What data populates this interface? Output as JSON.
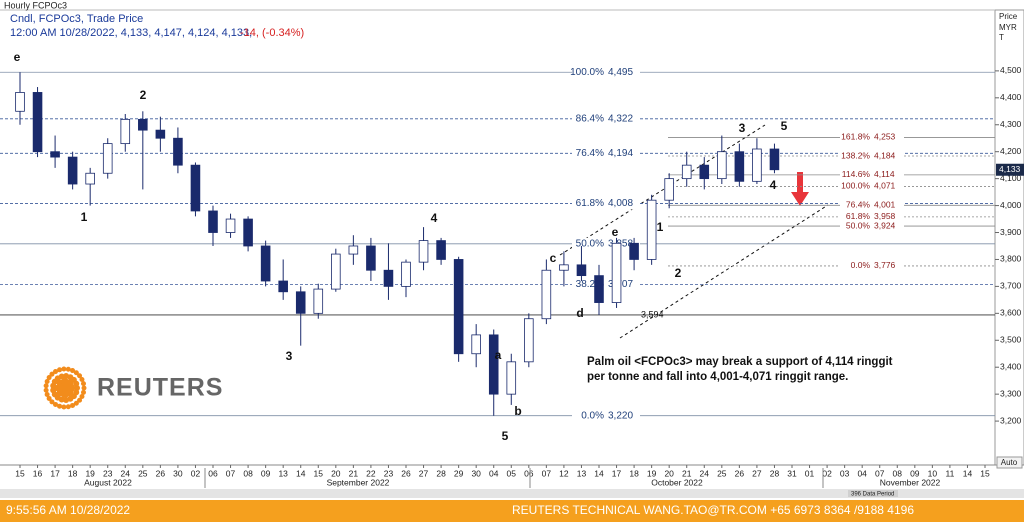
{
  "chart_data": {
    "type": "candlestick",
    "title": "Hourly FCPOc3",
    "subtitle": "Cndl, FCPOc3, Trade Price",
    "quote": "12:00 AM 10/28/2022, 4,133, 4,147, 4,124, 4,133,",
    "change": "-14, (-0.34%)",
    "axis_title": [
      "Price",
      "MYR",
      "T"
    ],
    "categories": [
      "15",
      "16",
      "17",
      "18",
      "19",
      "23",
      "24",
      "25",
      "26",
      "30",
      "02",
      "06",
      "07",
      "08",
      "09",
      "13",
      "14",
      "15",
      "20",
      "21",
      "22",
      "23",
      "26",
      "27",
      "28",
      "29",
      "30",
      "04",
      "05",
      "06",
      "07",
      "12",
      "13",
      "14",
      "17",
      "18",
      "19",
      "20",
      "21",
      "24",
      "25",
      "26",
      "27",
      "28",
      "31",
      "01",
      "02",
      "03",
      "04",
      "07",
      "08",
      "09",
      "10",
      "11",
      "14",
      "15"
    ],
    "months": [
      "August 2022",
      "September 2022",
      "October 2022",
      "November 2022"
    ],
    "open": [
      4350,
      4420,
      4200,
      4180,
      4080,
      4120,
      4230,
      4320,
      4280,
      4250,
      4150,
      3980,
      3900,
      3950,
      3850,
      3720,
      3680,
      3600,
      3690,
      3820,
      3850,
      3760,
      3700,
      3790,
      3870,
      3800,
      3450,
      3520,
      3300,
      3420,
      3580,
      3760,
      3780,
      3740,
      3640,
      3860,
      3800,
      4020,
      4100,
      4150,
      4100,
      4200,
      4090,
      4210,
      null,
      null,
      null,
      null,
      null,
      null,
      null,
      null,
      null,
      null,
      null,
      null
    ],
    "high": [
      4495,
      4440,
      4260,
      4200,
      4140,
      4250,
      4340,
      4350,
      4330,
      4290,
      4160,
      4000,
      3970,
      3960,
      3870,
      3800,
      3700,
      3710,
      3840,
      3890,
      3880,
      3860,
      3800,
      3920,
      3880,
      3810,
      3560,
      3540,
      3450,
      3600,
      3800,
      3830,
      3850,
      3780,
      3880,
      3880,
      4040,
      4120,
      4200,
      4180,
      4260,
      4230,
      4250,
      4230,
      null,
      null,
      null,
      null,
      null,
      null,
      null,
      null,
      null,
      null,
      null,
      null
    ],
    "low": [
      4300,
      4180,
      4140,
      4060,
      4000,
      4100,
      4200,
      4060,
      4200,
      4120,
      3960,
      3850,
      3880,
      3830,
      3700,
      3650,
      3480,
      3580,
      3680,
      3780,
      3720,
      3650,
      3660,
      3760,
      3780,
      3420,
      3400,
      3220,
      3260,
      3400,
      3560,
      3700,
      3720,
      3594,
      3620,
      3760,
      3780,
      3990,
      4070,
      4060,
      4080,
      4070,
      4080,
      4120,
      null,
      null,
      null,
      null,
      null,
      null,
      null,
      null,
      null,
      null,
      null,
      null
    ],
    "close": [
      4420,
      4200,
      4180,
      4080,
      4120,
      4230,
      4320,
      4280,
      4250,
      4150,
      3980,
      3900,
      3950,
      3850,
      3720,
      3680,
      3600,
      3690,
      3820,
      3850,
      3760,
      3700,
      3790,
      3870,
      3800,
      3450,
      3520,
      3300,
      3420,
      3580,
      3760,
      3780,
      3740,
      3640,
      3860,
      3800,
      4020,
      4100,
      4150,
      4100,
      4200,
      4090,
      4210,
      4133,
      null,
      null,
      null,
      null,
      null,
      null,
      null,
      null,
      null,
      null,
      null,
      null
    ],
    "ylim": [
      3037,
      4726
    ],
    "yticks": [
      {
        "value": 3200,
        "label": "3,200"
      },
      {
        "value": 3300,
        "label": "3,300"
      },
      {
        "value": 3400,
        "label": "3,400"
      },
      {
        "value": 3500,
        "label": "3,500"
      },
      {
        "value": 3600,
        "label": "3,600"
      },
      {
        "value": 3700,
        "label": "3,700"
      },
      {
        "value": 3800,
        "label": "3,800"
      },
      {
        "value": 3900,
        "label": "3,900"
      },
      {
        "value": 4000,
        "label": "4,000"
      },
      {
        "value": 4100,
        "label": "4,100"
      },
      {
        "value": 4200,
        "label": "4,200"
      },
      {
        "value": 4300,
        "label": "4,300"
      },
      {
        "value": 4400,
        "label": "4,400"
      },
      {
        "value": 4500,
        "label": "4,500"
      }
    ],
    "last": {
      "value": 4133,
      "label": "4,133"
    },
    "fib_left": [
      {
        "pct": "100.0%",
        "value": 4495,
        "label": "4,495"
      },
      {
        "pct": "86.4%",
        "value": 4322,
        "label": "4,322"
      },
      {
        "pct": "76.4%",
        "value": 4194,
        "label": "4,194"
      },
      {
        "pct": "61.8%",
        "value": 4008,
        "label": "4,008"
      },
      {
        "pct": "50.0%",
        "value": 3858,
        "label": "3,858"
      },
      {
        "pct": "38.2%",
        "value": 3707,
        "label": "3,707"
      },
      {
        "pct": "0.0%",
        "value": 3220,
        "label": "3,220"
      }
    ],
    "fib_right": [
      {
        "pct": "161.8%",
        "value": 4253,
        "label": "4,253"
      },
      {
        "pct": "138.2%",
        "value": 4184,
        "label": "4,184"
      },
      {
        "pct": "114.6%",
        "value": 4114,
        "label": "4,114"
      },
      {
        "pct": "100.0%",
        "value": 4071,
        "label": "4,071"
      },
      {
        "pct": "76.4%",
        "value": 4001,
        "label": "4,001"
      },
      {
        "pct": "61.8%",
        "value": 3958,
        "label": "3,958"
      },
      {
        "pct": "50.0%",
        "value": 3924,
        "label": "3,924"
      },
      {
        "pct": "0.0%",
        "value": 3776,
        "label": "3,776"
      }
    ],
    "support": {
      "value": 3594,
      "label": "3,594"
    },
    "waves": [
      "e",
      "2",
      "1",
      "3",
      "4",
      "a",
      "b",
      "5",
      "c",
      "d",
      "e",
      "1",
      "2",
      "3",
      "4",
      "5"
    ],
    "note": [
      "Palm oil <FCPOc3> may break a support of 4,114 ringgit",
      "per tonne and fall into 4,001-4,071 ringgit range."
    ],
    "auto_button": "Auto",
    "data_period": "396 Data Period"
  },
  "logo": "REUTERS",
  "footer": {
    "time": "9:55:56 AM 10/28/2022",
    "contact": "REUTERS TECHNICAL  WANG.TAO@TR.COM  +65 6973 8364 /9188 4196"
  }
}
